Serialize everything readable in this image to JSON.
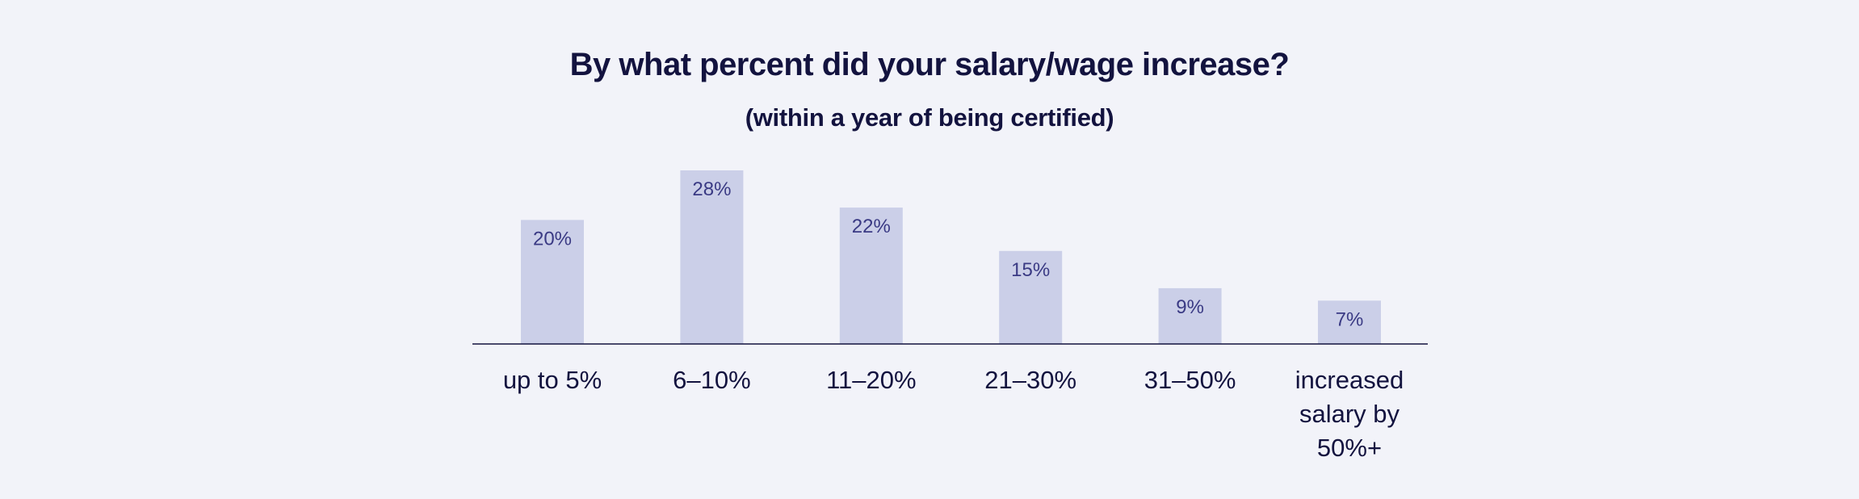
{
  "chart_data": {
    "type": "bar",
    "title": "By what percent did your salary/wage increase?",
    "subtitle": "(within a year of being certified)",
    "categories": [
      [
        "up to 5%"
      ],
      [
        "6–10%"
      ],
      [
        "11–20%"
      ],
      [
        "21–30%"
      ],
      [
        "31–50%"
      ],
      [
        "increased",
        "salary by",
        "50%+"
      ]
    ],
    "values": [
      20,
      28,
      22,
      15,
      9,
      7
    ],
    "value_labels": [
      "20%",
      "28%",
      "22%",
      "15%",
      "9%",
      "7%"
    ],
    "ylim": [
      0,
      28
    ],
    "grid": false,
    "legend": "none",
    "colors": {
      "bar": "#cbcfe8",
      "value_text": "#3a3a84",
      "text": "#13133f",
      "background": "#f2f3f9"
    }
  }
}
